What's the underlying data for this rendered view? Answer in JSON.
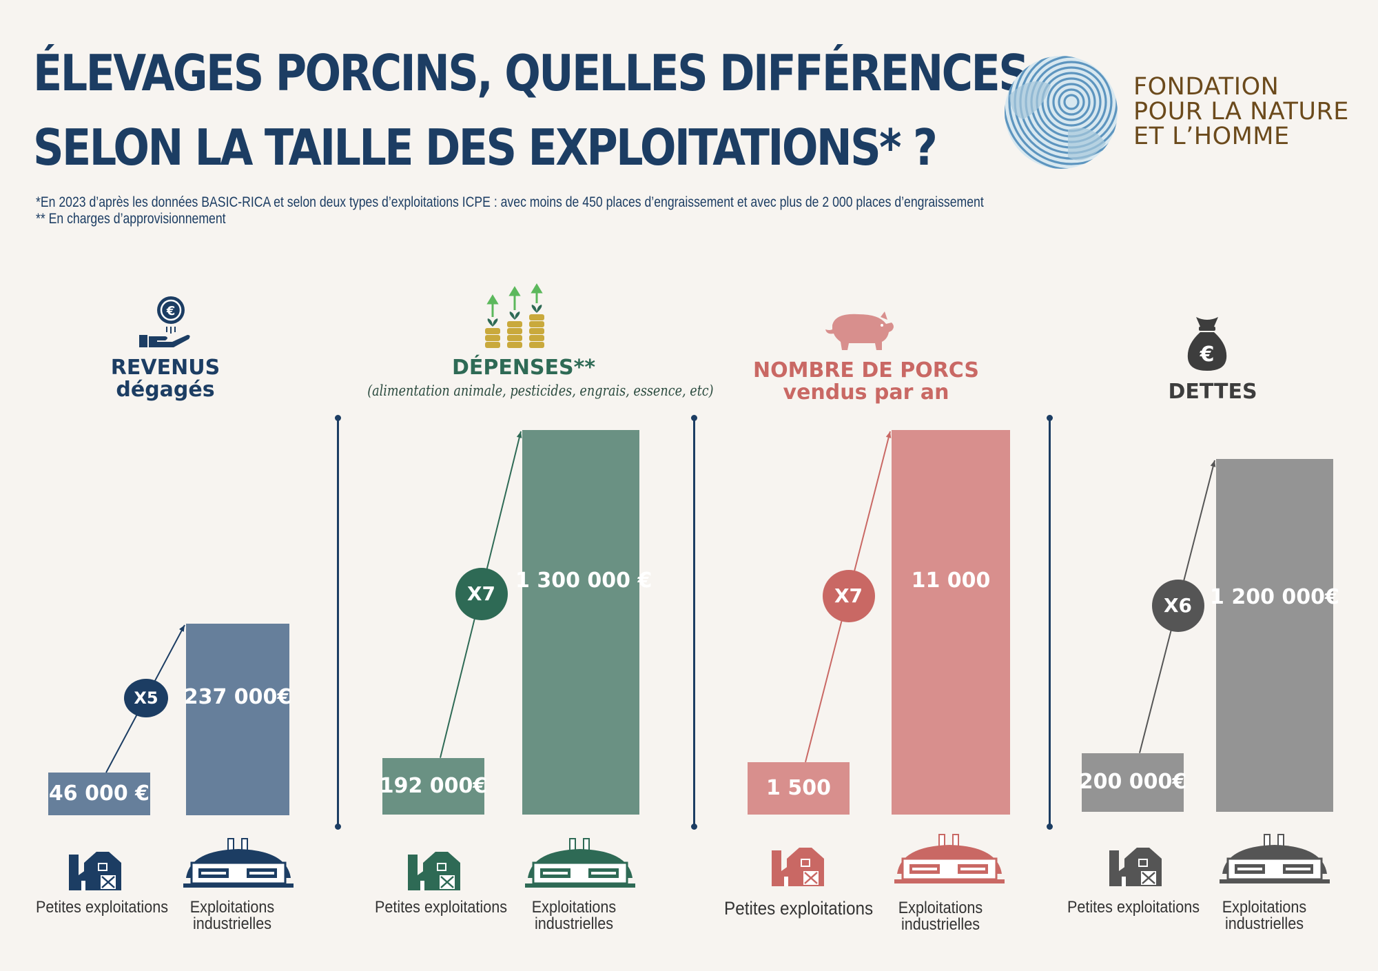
{
  "header": {
    "title_line1": "ÉLEVAGES PORCINS, QUELLES DIFFÉRENCES",
    "title_line2": "SELON LA TAILLE DES EXPLOITATIONS* ?",
    "footnote1": "*En 2023 d’après les données BASIC-RICA et selon deux types d’exploitations ICPE  : avec moins de 450 places d’engraissement et avec plus de 2 000 places d’engraissement",
    "footnote2": "** En charges d’approvisionnement"
  },
  "logo": {
    "line1": "FONDATION",
    "line2": "POUR LA NATURE",
    "line3": "ET L’HOMME",
    "icon": "fingerprint-globe-icon"
  },
  "colors": {
    "revenus": "#667f9b",
    "revenus_dark": "#1c3d63",
    "depenses": "#6a9183",
    "depenses_dark": "#2e6a55",
    "porcs": "#d88f8d",
    "porcs_dark": "#c96864",
    "dettes": "#949494",
    "dettes_dark": "#555555"
  },
  "chart_data": [
    {
      "type": "bar",
      "title": "REVENUS",
      "subtitle": "dégagés",
      "categories": [
        "Petites exploitations",
        "Exploitations industrielles"
      ],
      "values": [
        46000,
        237000
      ],
      "value_labels": [
        "46 000 €",
        "237 000€"
      ],
      "multiplier": "X5",
      "icon": "coin-hand-icon"
    },
    {
      "type": "bar",
      "title": "DÉPENSES**",
      "subtitle": "(alimentation animale, pesticides, engrais, essence, etc)",
      "categories": [
        "Petites exploitations",
        "Exploitations industrielles"
      ],
      "values": [
        192000,
        1300000
      ],
      "value_labels": [
        "192 000€",
        "1 300 000 €"
      ],
      "multiplier": "X7",
      "icon": "growing-coins-icon"
    },
    {
      "type": "bar",
      "title": "NOMBRE DE PORCS",
      "subtitle": "vendus par an",
      "categories": [
        "Petites exploitations",
        "Exploitations industrielles"
      ],
      "values": [
        1500,
        11000
      ],
      "value_labels": [
        "1 500",
        "11 000"
      ],
      "multiplier": "X7",
      "icon": "pig-icon"
    },
    {
      "type": "bar",
      "title": "DETTES",
      "subtitle": "",
      "categories": [
        "Petites exploitations",
        "Exploitations industrielles"
      ],
      "values": [
        200000,
        1200000
      ],
      "value_labels": [
        "200 000€",
        "1 200 000€"
      ],
      "multiplier": "X6",
      "icon": "money-bag-icon"
    }
  ],
  "categories": {
    "small_line1": "Petites exploitations",
    "large_line1": "Exploitations",
    "large_line2": "industrielles"
  }
}
